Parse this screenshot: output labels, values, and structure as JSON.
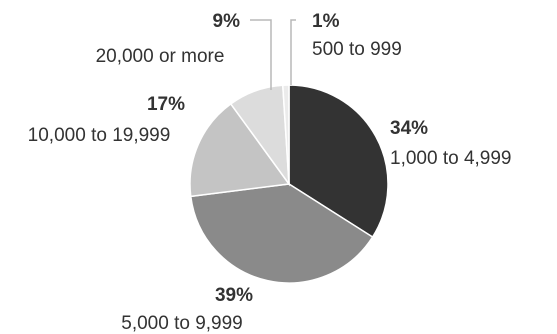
{
  "chart_data": {
    "type": "pie",
    "title": "",
    "start_angle_deg": 0,
    "direction": "clockwise",
    "slices": [
      {
        "label": "1,000 to 4,999",
        "percent_label": "34%",
        "value": 34,
        "color": "#333333"
      },
      {
        "label": "5,000 to 9,999",
        "percent_label": "39%",
        "value": 39,
        "color": "#8a8a8a"
      },
      {
        "label": "10,000 to 19,999",
        "percent_label": "17%",
        "value": 17,
        "color": "#c4c4c4"
      },
      {
        "label": "20,000 or more",
        "percent_label": "9%",
        "value": 9,
        "color": "#dcdcdc"
      },
      {
        "label": "500 to 999",
        "percent_label": "1%",
        "value": 1,
        "color": "#ebebeb"
      }
    ]
  }
}
